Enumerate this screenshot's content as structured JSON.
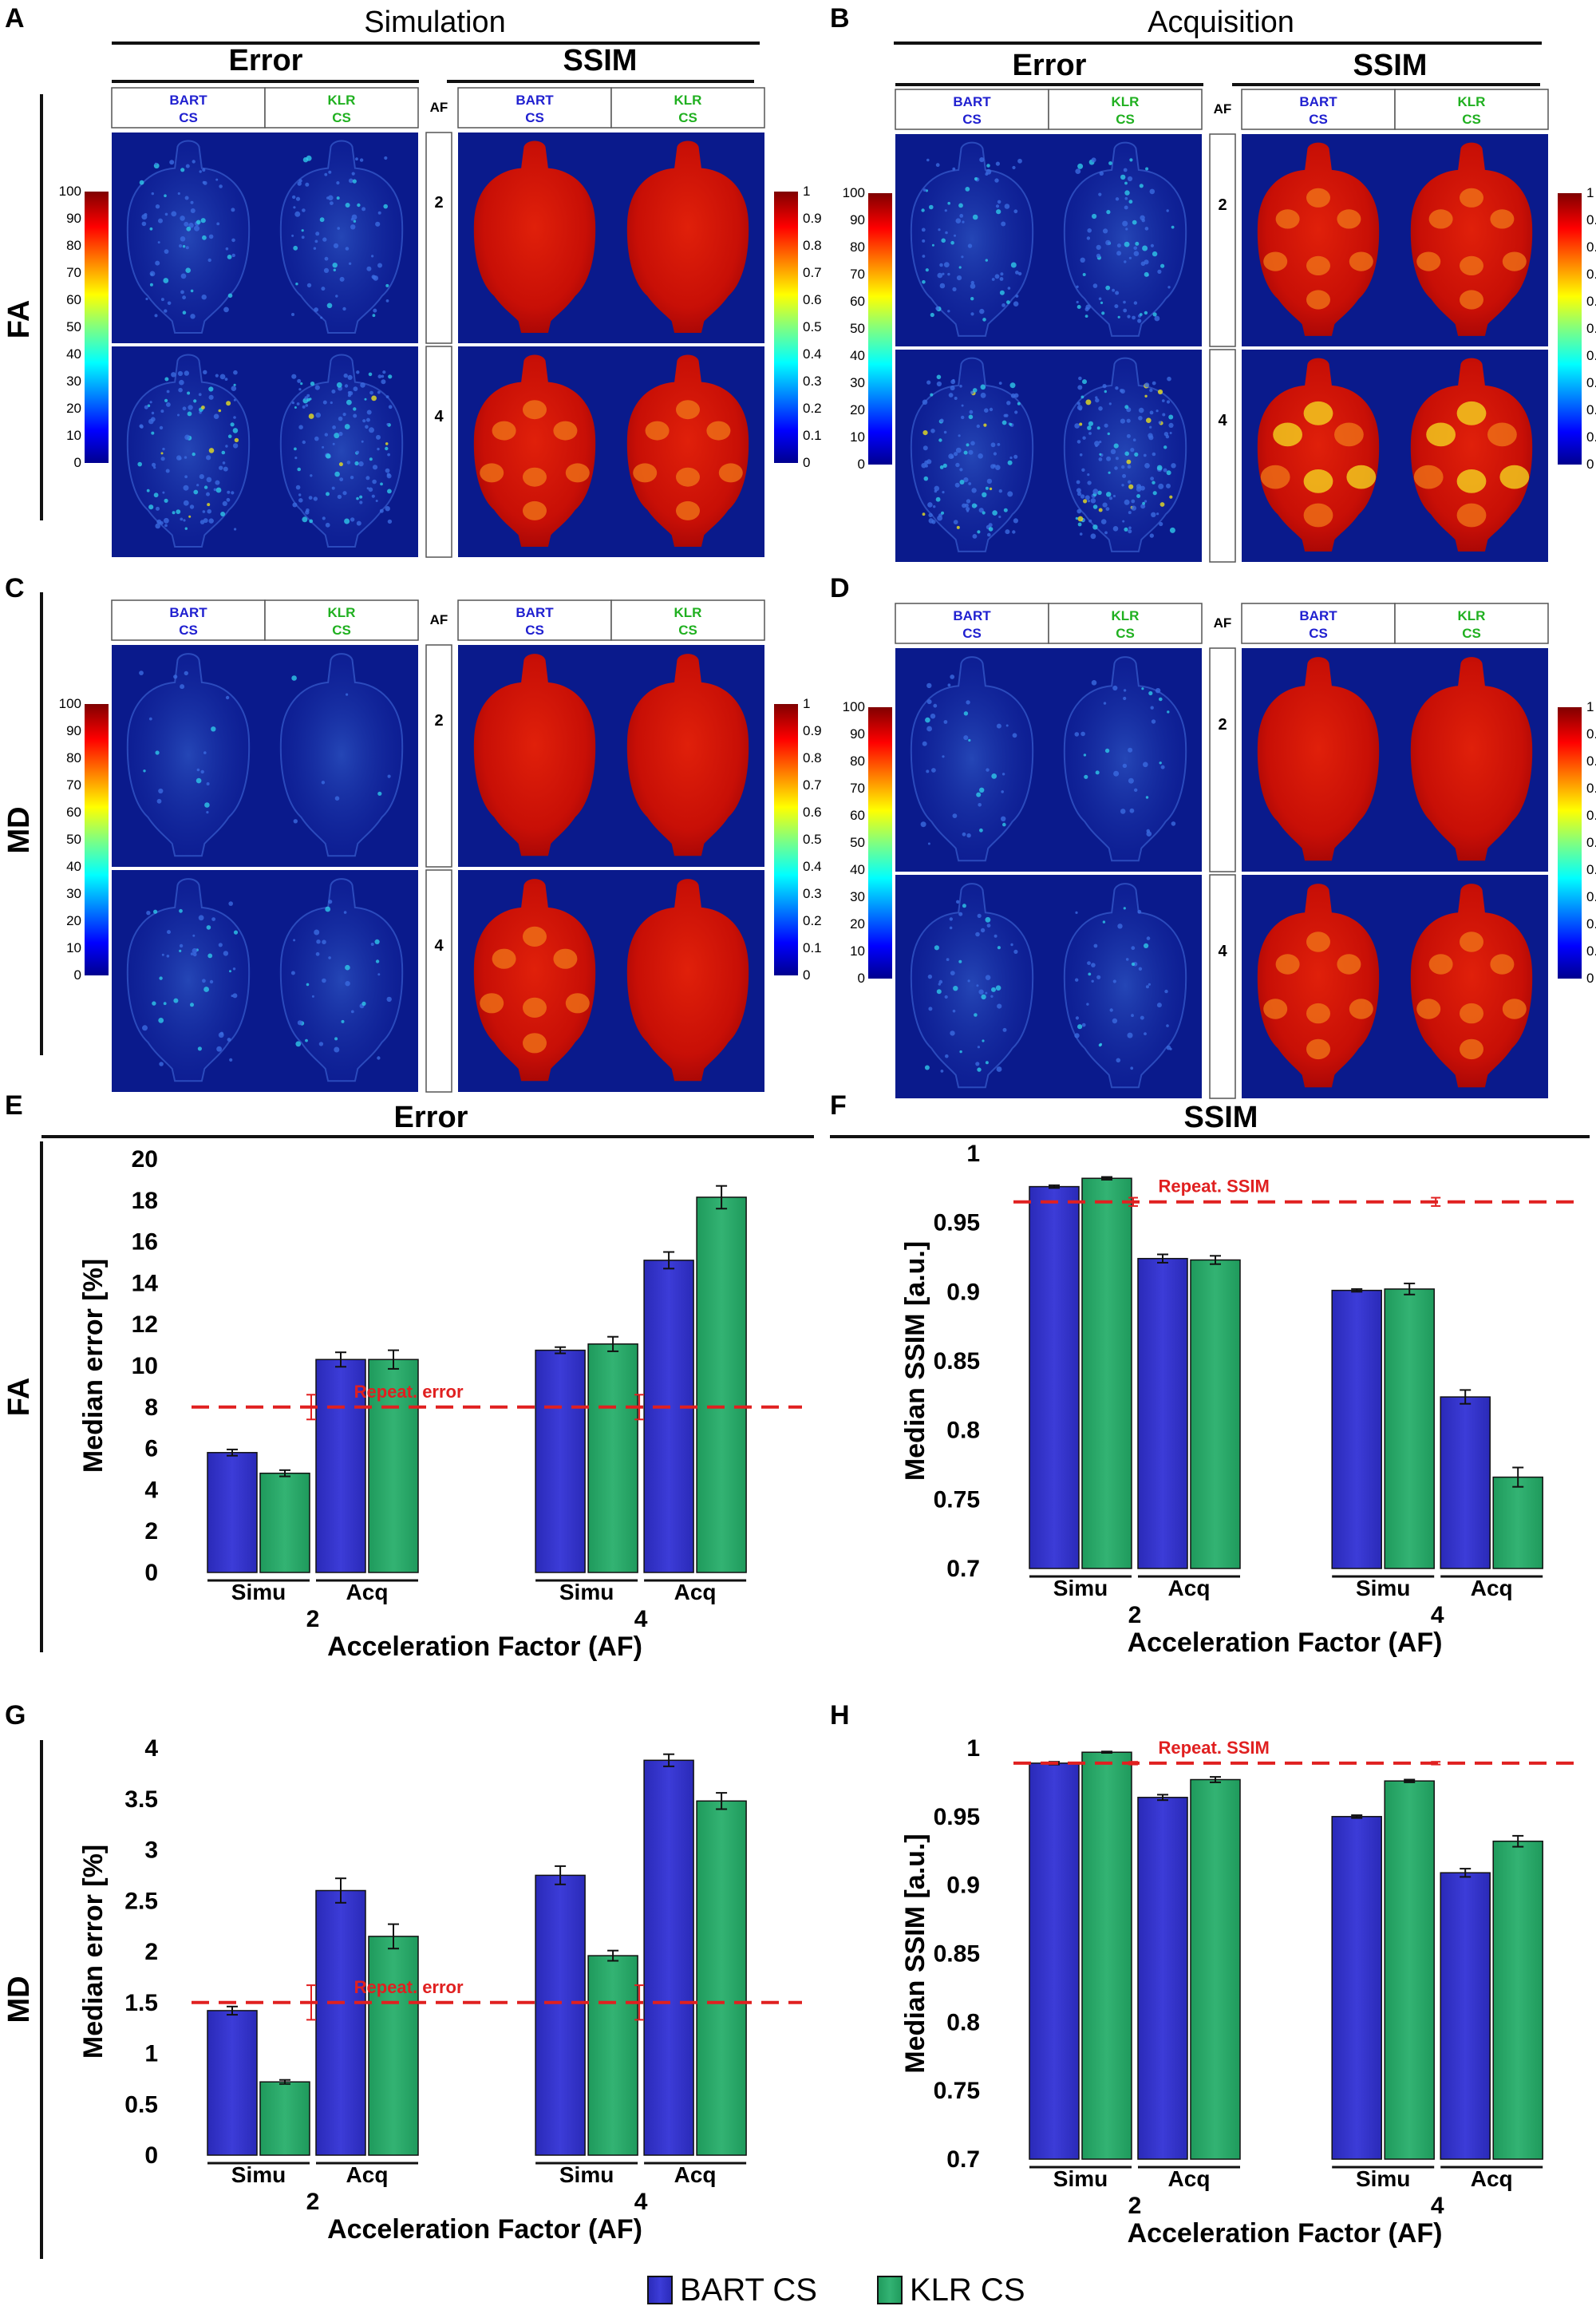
{
  "colors": {
    "bart": "#3333cc",
    "klr": "#2aa868",
    "repeat_line": "#e02020",
    "bart_label": "#2020d0",
    "klr_label": "#20b020",
    "map_bg": "#0a1a8c"
  },
  "figure": {
    "panel_letters": [
      "A",
      "B",
      "C",
      "D",
      "E",
      "F",
      "G",
      "H"
    ],
    "row_labels": [
      "FA",
      "MD",
      "FA",
      "MD"
    ],
    "headers": {
      "simulation": "Simulation",
      "acquisition": "Acquisition",
      "error": "Error",
      "ssim": "SSIM",
      "af": "AF"
    },
    "methods": [
      {
        "line1": "BART",
        "line2": "CS"
      },
      {
        "line1": "KLR",
        "line2": "CS"
      }
    ],
    "af_values": [
      "2",
      "4"
    ],
    "error_colorbar_ticks": [
      "100",
      "90",
      "80",
      "70",
      "60",
      "50",
      "40",
      "30",
      "20",
      "10",
      "0"
    ],
    "ssim_colorbar_ticks": [
      "1",
      "0.9",
      "0.8",
      "0.7",
      "0.6",
      "0.5",
      "0.4",
      "0.3",
      "0.2",
      "0.1",
      "0"
    ],
    "legend": {
      "bart": "BART CS",
      "klr": "KLR CS"
    }
  },
  "map_panels": [
    {
      "letter": "A",
      "row": "FA",
      "source": "Simulation"
    },
    {
      "letter": "B",
      "row": "FA",
      "source": "Acquisition"
    },
    {
      "letter": "C",
      "row": "MD",
      "source": "Simulation"
    },
    {
      "letter": "D",
      "row": "MD",
      "source": "Acquisition"
    }
  ],
  "chart_data": [
    {
      "panel": "E",
      "type": "bar",
      "title": "Error",
      "row_label": "FA",
      "xlabel": "Acceleration Factor (AF)",
      "ylabel": "Median error [%]",
      "ylim": [
        0,
        20
      ],
      "yticks": [
        "0",
        "2",
        "4",
        "6",
        "8",
        "10",
        "12",
        "14",
        "16",
        "18",
        "20"
      ],
      "groups": [
        "2",
        "4"
      ],
      "subgroups": [
        "Simu",
        "Acq"
      ],
      "series": [
        {
          "name": "BART CS",
          "values": [
            5.8,
            10.3,
            10.75,
            15.1
          ],
          "errors": [
            0.15,
            0.35,
            0.15,
            0.4
          ]
        },
        {
          "name": "KLR CS",
          "values": [
            4.8,
            10.3,
            11.05,
            18.15
          ],
          "errors": [
            0.15,
            0.45,
            0.35,
            0.55
          ]
        }
      ],
      "reference": {
        "label": "Repeat. error",
        "value": 8.0,
        "error": 0.6
      }
    },
    {
      "panel": "F",
      "type": "bar",
      "title": "SSIM",
      "row_label": "",
      "xlabel": "Acceleration Factor (AF)",
      "ylabel": "Median SSIM [a.u.]",
      "ylim": [
        0.7,
        1.0
      ],
      "yticks": [
        "0.7",
        "0.75",
        "0.8",
        "0.85",
        "0.9",
        "0.95",
        "1"
      ],
      "groups": [
        "2",
        "4"
      ],
      "subgroups": [
        "Simu",
        "Acq"
      ],
      "series": [
        {
          "name": "BART CS",
          "values": [
            0.976,
            0.924,
            0.901,
            0.824
          ],
          "errors": [
            0.001,
            0.003,
            0.001,
            0.005
          ]
        },
        {
          "name": "KLR CS",
          "values": [
            0.982,
            0.923,
            0.902,
            0.766
          ],
          "errors": [
            0.001,
            0.003,
            0.004,
            0.007
          ]
        }
      ],
      "reference": {
        "label": "Repeat. SSIM",
        "value": 0.965,
        "error": 0.003
      }
    },
    {
      "panel": "G",
      "type": "bar",
      "title": "",
      "row_label": "MD",
      "xlabel": "Acceleration Factor (AF)",
      "ylabel": "Median error [%]",
      "ylim": [
        0,
        4
      ],
      "yticks": [
        "0",
        "0.5",
        "1",
        "1.5",
        "2",
        "2.5",
        "3",
        "3.5",
        "4"
      ],
      "groups": [
        "2",
        "4"
      ],
      "subgroups": [
        "Simu",
        "Acq"
      ],
      "series": [
        {
          "name": "BART CS",
          "values": [
            1.42,
            2.6,
            2.75,
            3.88
          ],
          "errors": [
            0.04,
            0.12,
            0.09,
            0.06
          ]
        },
        {
          "name": "KLR CS",
          "values": [
            0.72,
            2.15,
            1.96,
            3.48
          ],
          "errors": [
            0.02,
            0.12,
            0.05,
            0.08
          ]
        }
      ],
      "reference": {
        "label": "Repeat. error",
        "value": 1.5,
        "error": 0.17
      }
    },
    {
      "panel": "H",
      "type": "bar",
      "title": "",
      "row_label": "",
      "xlabel": "Acceleration Factor (AF)",
      "ylabel": "Median SSIM [a.u.]",
      "ylim": [
        0.7,
        1.0
      ],
      "yticks": [
        "0.7",
        "0.75",
        "0.8",
        "0.85",
        "0.9",
        "0.95",
        "1"
      ],
      "groups": [
        "2",
        "4"
      ],
      "subgroups": [
        "Simu",
        "Acq"
      ],
      "series": [
        {
          "name": "BART CS",
          "values": [
            0.989,
            0.964,
            0.95,
            0.909
          ],
          "errors": [
            0.001,
            0.002,
            0.001,
            0.003
          ]
        },
        {
          "name": "KLR CS",
          "values": [
            0.997,
            0.977,
            0.976,
            0.932
          ],
          "errors": [
            0.0005,
            0.002,
            0.001,
            0.004
          ]
        }
      ],
      "reference": {
        "label": "Repeat. SSIM",
        "value": 0.989,
        "error": 0.001
      }
    }
  ]
}
